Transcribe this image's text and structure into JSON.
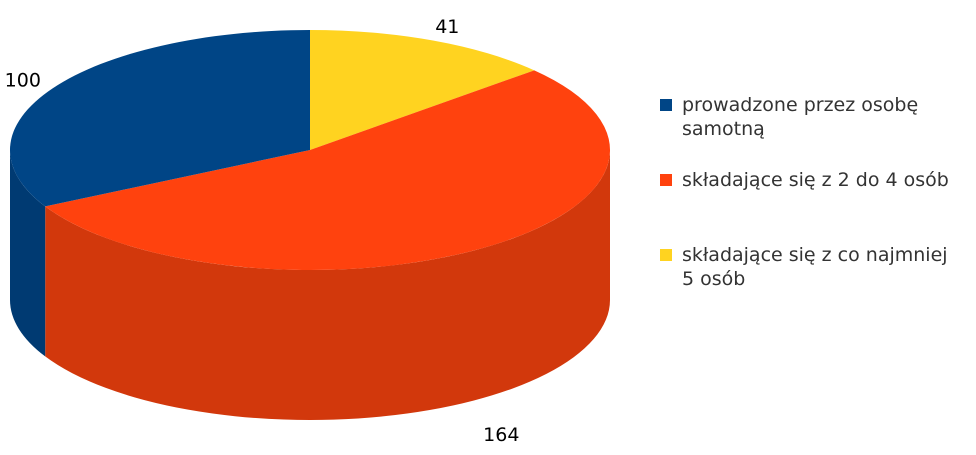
{
  "chart_data": {
    "type": "pie3d",
    "categories": [
      "prowadzone przez osobę samotną",
      "składające się z 2 do 4 osób",
      "składające się z co najmniej 5 osób"
    ],
    "values": [
      100,
      164,
      41
    ],
    "colors": [
      "#004586",
      "#ff420e",
      "#ffd320"
    ],
    "side_colors": [
      "#003a72",
      "#d2380c",
      "#e0b81c"
    ],
    "legend": "right"
  }
}
